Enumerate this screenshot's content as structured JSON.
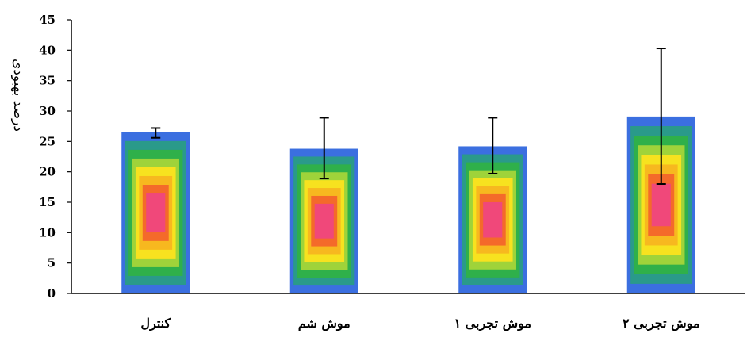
{
  "chart_data": {
    "type": "bar",
    "title": "",
    "xlabel": "",
    "ylabel": "درصد بهبودی",
    "ylim": [
      0,
      45
    ],
    "yticks": [
      0,
      5,
      10,
      15,
      20,
      25,
      30,
      35,
      40,
      45
    ],
    "grid": false,
    "legend": "none",
    "categories": [
      "کنترل",
      "موش شم",
      "موش تجربی ۱",
      "موش تجربی ۲"
    ],
    "values": [
      26.5,
      23.8,
      24.2,
      29.1
    ],
    "error_low": [
      25.6,
      18.9,
      19.7,
      18.0
    ],
    "error_high": [
      27.2,
      28.9,
      28.9,
      40.3
    ],
    "bar_gradient_colors": [
      "#3b6fe0",
      "#2a9a8a",
      "#2fb04a",
      "#9fd33a",
      "#f7e21f",
      "#f7b81f",
      "#f46a2a",
      "#f0487a"
    ]
  }
}
